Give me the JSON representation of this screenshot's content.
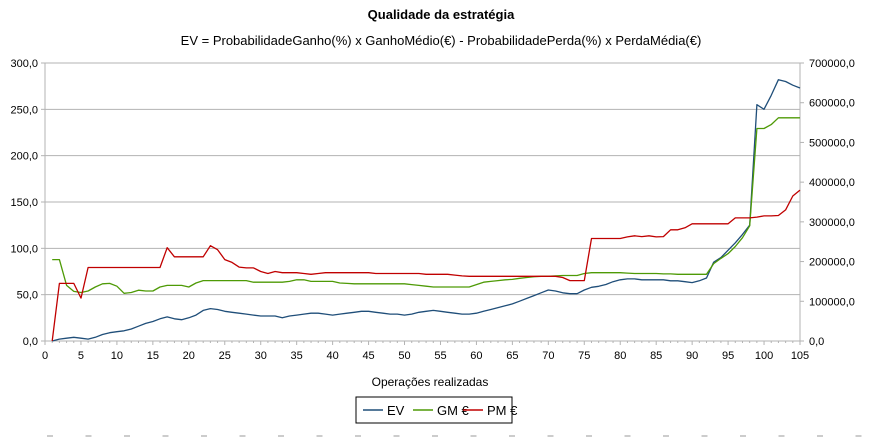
{
  "chart_data": {
    "type": "line",
    "title": "Qualidade da estratégia",
    "subtitle": "EV = ProbabilidadeGanho(%) x GanhoMédio(€) - ProbabilidadePerda(%) x PerdaMédia(€)",
    "xlabel": "Operações realizadas",
    "xlim": [
      0,
      105
    ],
    "x_ticks": [
      "0",
      "5",
      "10",
      "15",
      "20",
      "25",
      "30",
      "35",
      "40",
      "45",
      "50",
      "55",
      "60",
      "65",
      "70",
      "75",
      "80",
      "85",
      "90",
      "95",
      "100",
      "105"
    ],
    "y_left_lim": [
      0,
      300
    ],
    "y_left_ticks": [
      "0,0",
      "50,0",
      "100,0",
      "150,0",
      "200,0",
      "250,0",
      "300,0"
    ],
    "y_right_lim": [
      0,
      700000
    ],
    "y_right_ticks": [
      "0,0",
      "100000,0",
      "200000,0",
      "300000,0",
      "400000,0",
      "500000,0",
      "600000,0",
      "700000,0"
    ],
    "grid": "horizontal",
    "legend_position": "bottom",
    "series": [
      {
        "name": "EV",
        "axis": "left",
        "color": "#1f4e79",
        "points": [
          [
            1,
            0
          ],
          [
            2,
            2
          ],
          [
            3,
            3
          ],
          [
            4,
            4
          ],
          [
            5,
            3
          ],
          [
            6,
            2
          ],
          [
            7,
            4
          ],
          [
            8,
            7
          ],
          [
            9,
            9
          ],
          [
            10,
            10
          ],
          [
            11,
            11
          ],
          [
            12,
            13
          ],
          [
            13,
            16
          ],
          [
            14,
            19
          ],
          [
            15,
            21
          ],
          [
            16,
            24
          ],
          [
            17,
            26
          ],
          [
            18,
            24
          ],
          [
            19,
            23
          ],
          [
            20,
            25
          ],
          [
            21,
            28
          ],
          [
            22,
            33
          ],
          [
            23,
            35
          ],
          [
            24,
            34
          ],
          [
            25,
            32
          ],
          [
            26,
            31
          ],
          [
            27,
            30
          ],
          [
            28,
            29
          ],
          [
            29,
            28
          ],
          [
            30,
            27
          ],
          [
            31,
            27
          ],
          [
            32,
            27
          ],
          [
            33,
            25
          ],
          [
            34,
            27
          ],
          [
            35,
            28
          ],
          [
            36,
            29
          ],
          [
            37,
            30
          ],
          [
            38,
            30
          ],
          [
            39,
            29
          ],
          [
            40,
            28
          ],
          [
            41,
            29
          ],
          [
            42,
            30
          ],
          [
            43,
            31
          ],
          [
            44,
            32
          ],
          [
            45,
            32
          ],
          [
            46,
            31
          ],
          [
            47,
            30
          ],
          [
            48,
            29
          ],
          [
            49,
            29
          ],
          [
            50,
            28
          ],
          [
            51,
            29
          ],
          [
            52,
            31
          ],
          [
            53,
            32
          ],
          [
            54,
            33
          ],
          [
            55,
            32
          ],
          [
            56,
            31
          ],
          [
            57,
            30
          ],
          [
            58,
            29
          ],
          [
            59,
            29
          ],
          [
            60,
            30
          ],
          [
            61,
            32
          ],
          [
            62,
            34
          ],
          [
            63,
            36
          ],
          [
            64,
            38
          ],
          [
            65,
            40
          ],
          [
            66,
            43
          ],
          [
            67,
            46
          ],
          [
            68,
            49
          ],
          [
            69,
            52
          ],
          [
            70,
            55
          ],
          [
            71,
            54
          ],
          [
            72,
            52
          ],
          [
            73,
            51
          ],
          [
            74,
            51
          ],
          [
            75,
            55
          ],
          [
            76,
            58
          ],
          [
            77,
            59
          ],
          [
            78,
            61
          ],
          [
            79,
            64
          ],
          [
            80,
            66
          ],
          [
            81,
            67
          ],
          [
            82,
            67
          ],
          [
            83,
            66
          ],
          [
            84,
            66
          ],
          [
            85,
            66
          ],
          [
            86,
            66
          ],
          [
            87,
            65
          ],
          [
            88,
            65
          ],
          [
            89,
            64
          ],
          [
            90,
            63
          ],
          [
            91,
            65
          ],
          [
            92,
            68
          ],
          [
            93,
            85
          ],
          [
            94,
            90
          ],
          [
            95,
            98
          ],
          [
            96,
            106
          ],
          [
            97,
            115
          ],
          [
            98,
            125
          ],
          [
            99,
            255
          ],
          [
            100,
            250
          ],
          [
            101,
            265
          ],
          [
            102,
            282
          ],
          [
            103,
            280
          ],
          [
            104,
            276
          ],
          [
            105,
            273
          ]
        ]
      },
      {
        "name": "GM €",
        "axis": "right",
        "color": "#4e9a06",
        "points": [
          [
            1,
            205000
          ],
          [
            2,
            205000
          ],
          [
            3,
            140000
          ],
          [
            4,
            125000
          ],
          [
            5,
            122000
          ],
          [
            6,
            126000
          ],
          [
            7,
            136000
          ],
          [
            8,
            144000
          ],
          [
            9,
            145000
          ],
          [
            10,
            138000
          ],
          [
            11,
            120000
          ],
          [
            12,
            122000
          ],
          [
            13,
            128000
          ],
          [
            14,
            126000
          ],
          [
            15,
            126000
          ],
          [
            16,
            136000
          ],
          [
            17,
            140000
          ],
          [
            18,
            140000
          ],
          [
            19,
            140000
          ],
          [
            20,
            136000
          ],
          [
            21,
            146000
          ],
          [
            22,
            152000
          ],
          [
            23,
            152000
          ],
          [
            24,
            152000
          ],
          [
            25,
            152000
          ],
          [
            26,
            152000
          ],
          [
            27,
            152000
          ],
          [
            28,
            152000
          ],
          [
            29,
            148000
          ],
          [
            30,
            148000
          ],
          [
            31,
            148000
          ],
          [
            32,
            148000
          ],
          [
            33,
            148000
          ],
          [
            34,
            150000
          ],
          [
            35,
            154000
          ],
          [
            36,
            154000
          ],
          [
            37,
            150000
          ],
          [
            38,
            150000
          ],
          [
            39,
            150000
          ],
          [
            40,
            150000
          ],
          [
            41,
            146000
          ],
          [
            42,
            145000
          ],
          [
            43,
            144000
          ],
          [
            44,
            144000
          ],
          [
            45,
            144000
          ],
          [
            46,
            144000
          ],
          [
            47,
            144000
          ],
          [
            48,
            144000
          ],
          [
            49,
            144000
          ],
          [
            50,
            144000
          ],
          [
            51,
            142000
          ],
          [
            52,
            140000
          ],
          [
            53,
            138000
          ],
          [
            54,
            136000
          ],
          [
            55,
            136000
          ],
          [
            56,
            136000
          ],
          [
            57,
            136000
          ],
          [
            58,
            136000
          ],
          [
            59,
            136000
          ],
          [
            60,
            142000
          ],
          [
            61,
            148000
          ],
          [
            62,
            150000
          ],
          [
            63,
            152000
          ],
          [
            64,
            154000
          ],
          [
            65,
            155000
          ],
          [
            66,
            158000
          ],
          [
            67,
            160000
          ],
          [
            68,
            162000
          ],
          [
            69,
            163000
          ],
          [
            70,
            163000
          ],
          [
            71,
            164000
          ],
          [
            72,
            165000
          ],
          [
            73,
            165000
          ],
          [
            74,
            165000
          ],
          [
            75,
            170000
          ],
          [
            76,
            172000
          ],
          [
            77,
            172000
          ],
          [
            78,
            172000
          ],
          [
            79,
            172000
          ],
          [
            80,
            172000
          ],
          [
            81,
            171000
          ],
          [
            82,
            170000
          ],
          [
            83,
            170000
          ],
          [
            84,
            170000
          ],
          [
            85,
            170000
          ],
          [
            86,
            169000
          ],
          [
            87,
            169000
          ],
          [
            88,
            168000
          ],
          [
            89,
            168000
          ],
          [
            90,
            168000
          ],
          [
            91,
            168000
          ],
          [
            92,
            168000
          ],
          [
            93,
            195000
          ],
          [
            94,
            208000
          ],
          [
            95,
            220000
          ],
          [
            96,
            238000
          ],
          [
            97,
            260000
          ],
          [
            98,
            290000
          ],
          [
            99,
            535000
          ],
          [
            100,
            535000
          ],
          [
            101,
            545000
          ],
          [
            102,
            562000
          ],
          [
            103,
            562000
          ],
          [
            104,
            562000
          ],
          [
            105,
            562000
          ]
        ]
      },
      {
        "name": "PM €",
        "axis": "right",
        "color": "#c00000",
        "points": [
          [
            1,
            0
          ],
          [
            2,
            145000
          ],
          [
            3,
            145000
          ],
          [
            4,
            145000
          ],
          [
            5,
            108000
          ],
          [
            6,
            185000
          ],
          [
            7,
            185000
          ],
          [
            8,
            185000
          ],
          [
            9,
            185000
          ],
          [
            10,
            185000
          ],
          [
            11,
            185000
          ],
          [
            12,
            185000
          ],
          [
            13,
            185000
          ],
          [
            14,
            185000
          ],
          [
            15,
            185000
          ],
          [
            16,
            185000
          ],
          [
            17,
            235000
          ],
          [
            18,
            212000
          ],
          [
            19,
            212000
          ],
          [
            20,
            212000
          ],
          [
            21,
            212000
          ],
          [
            22,
            212000
          ],
          [
            23,
            240000
          ],
          [
            24,
            230000
          ],
          [
            25,
            205000
          ],
          [
            26,
            198000
          ],
          [
            27,
            186000
          ],
          [
            28,
            184000
          ],
          [
            29,
            184000
          ],
          [
            30,
            175000
          ],
          [
            31,
            170000
          ],
          [
            32,
            175000
          ],
          [
            33,
            172000
          ],
          [
            34,
            172000
          ],
          [
            35,
            172000
          ],
          [
            36,
            170000
          ],
          [
            37,
            168000
          ],
          [
            38,
            170000
          ],
          [
            39,
            172000
          ],
          [
            40,
            172000
          ],
          [
            41,
            172000
          ],
          [
            42,
            172000
          ],
          [
            43,
            172000
          ],
          [
            44,
            172000
          ],
          [
            45,
            172000
          ],
          [
            46,
            170000
          ],
          [
            47,
            170000
          ],
          [
            48,
            170000
          ],
          [
            49,
            170000
          ],
          [
            50,
            170000
          ],
          [
            51,
            170000
          ],
          [
            52,
            170000
          ],
          [
            53,
            168000
          ],
          [
            54,
            168000
          ],
          [
            55,
            168000
          ],
          [
            56,
            168000
          ],
          [
            57,
            166000
          ],
          [
            58,
            164000
          ],
          [
            59,
            163000
          ],
          [
            60,
            163000
          ],
          [
            61,
            163000
          ],
          [
            62,
            163000
          ],
          [
            63,
            163000
          ],
          [
            64,
            163000
          ],
          [
            65,
            163000
          ],
          [
            66,
            163000
          ],
          [
            67,
            163000
          ],
          [
            68,
            163000
          ],
          [
            69,
            163000
          ],
          [
            70,
            163000
          ],
          [
            71,
            163000
          ],
          [
            72,
            160000
          ],
          [
            73,
            152000
          ],
          [
            74,
            152000
          ],
          [
            75,
            152000
          ],
          [
            76,
            258000
          ],
          [
            77,
            258000
          ],
          [
            78,
            258000
          ],
          [
            79,
            258000
          ],
          [
            80,
            258000
          ],
          [
            81,
            262000
          ],
          [
            82,
            265000
          ],
          [
            83,
            263000
          ],
          [
            84,
            265000
          ],
          [
            85,
            262000
          ],
          [
            86,
            263000
          ],
          [
            87,
            280000
          ],
          [
            88,
            280000
          ],
          [
            89,
            285000
          ],
          [
            90,
            295000
          ],
          [
            91,
            295000
          ],
          [
            92,
            295000
          ],
          [
            93,
            295000
          ],
          [
            94,
            295000
          ],
          [
            95,
            295000
          ],
          [
            96,
            310000
          ],
          [
            97,
            310000
          ],
          [
            98,
            310000
          ],
          [
            99,
            312000
          ],
          [
            100,
            315000
          ],
          [
            101,
            315000
          ],
          [
            102,
            316000
          ],
          [
            103,
            330000
          ],
          [
            104,
            365000
          ],
          [
            105,
            380000
          ]
        ]
      }
    ]
  }
}
